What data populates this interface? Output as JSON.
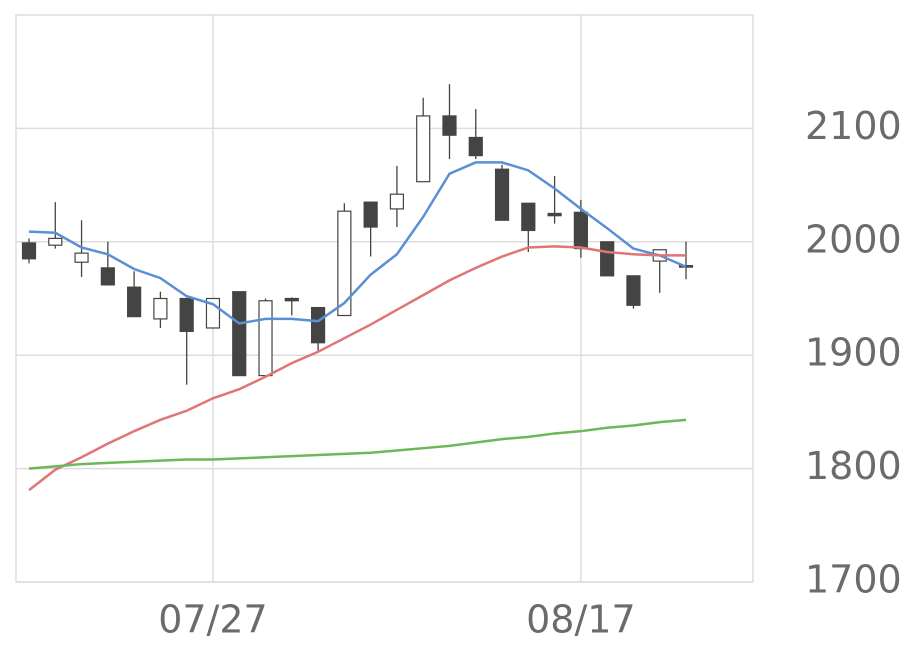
{
  "chart_data": {
    "type": "candlestick",
    "categories": [
      null,
      null,
      null,
      null,
      null,
      null,
      null,
      "07/27",
      null,
      null,
      null,
      null,
      null,
      null,
      null,
      null,
      null,
      null,
      null,
      null,
      null,
      "08/17",
      null,
      null,
      null,
      null
    ],
    "open": [
      1999,
      1997,
      1982,
      1977,
      1960,
      1932,
      1950,
      1924,
      1956,
      1882,
      1950,
      1942,
      1935,
      2035,
      2029,
      2053,
      2111,
      2092,
      2064,
      2034,
      2025,
      2026,
      2000,
      1970,
      1983,
      1979
    ],
    "high": [
      2003,
      2035,
      2019,
      2000,
      1974,
      1956,
      1950,
      1950,
      1956,
      1950,
      1951,
      1942,
      2034,
      2035,
      2067,
      2127,
      2139,
      2117,
      2068,
      2034,
      2058,
      2037,
      2000,
      1970,
      1993,
      2000
    ],
    "low": [
      1981,
      1994,
      1969,
      1962,
      1934,
      1924,
      1874,
      1924,
      1882,
      1882,
      1935,
      1903,
      1935,
      1987,
      2013,
      2053,
      2073,
      2073,
      2019,
      1991,
      2016,
      1986,
      1970,
      1941,
      1955,
      1967
    ],
    "close": [
      1985,
      2003,
      1990,
      1962,
      1934,
      1950,
      1921,
      1950,
      1882,
      1948,
      1948,
      1911,
      2027,
      2013,
      2042,
      2111,
      2094,
      2076,
      2019,
      2010,
      2023,
      1994,
      1970,
      1944,
      1993,
      1978
    ],
    "up_color": "#ffffff",
    "down_color": "#444444",
    "series": [
      {
        "color": "#5b8fd4",
        "values": [
          2009,
          2008,
          1995,
          1989,
          1976,
          1968,
          1952,
          1945,
          1928,
          1932,
          1932,
          1930,
          1946,
          1971,
          1989,
          2022,
          2060,
          2070,
          2070,
          2063,
          2047,
          2029,
          2012,
          1994,
          1988,
          1978
        ]
      },
      {
        "color": "#e07575",
        "values": [
          1781,
          1799,
          1810,
          1822,
          1833,
          1843,
          1851,
          1862,
          1870,
          1881,
          1893,
          1903,
          1915,
          1927,
          1940,
          1953,
          1966,
          1977,
          1987,
          1995,
          1996,
          1995,
          1991,
          1989,
          1988,
          1988
        ]
      },
      {
        "color": "#6ab85a",
        "values": [
          1800,
          1802,
          1804,
          1805,
          1806,
          1807,
          1808,
          1808,
          1809,
          1810,
          1811,
          1812,
          1813,
          1814,
          1816,
          1818,
          1820,
          1823,
          1826,
          1828,
          1831,
          1833,
          1836,
          1838,
          1841,
          1843
        ]
      }
    ],
    "ylim": [
      1700,
      2200
    ],
    "yticks": [
      1700,
      1800,
      1900,
      2000,
      2100
    ],
    "grid": true
  }
}
